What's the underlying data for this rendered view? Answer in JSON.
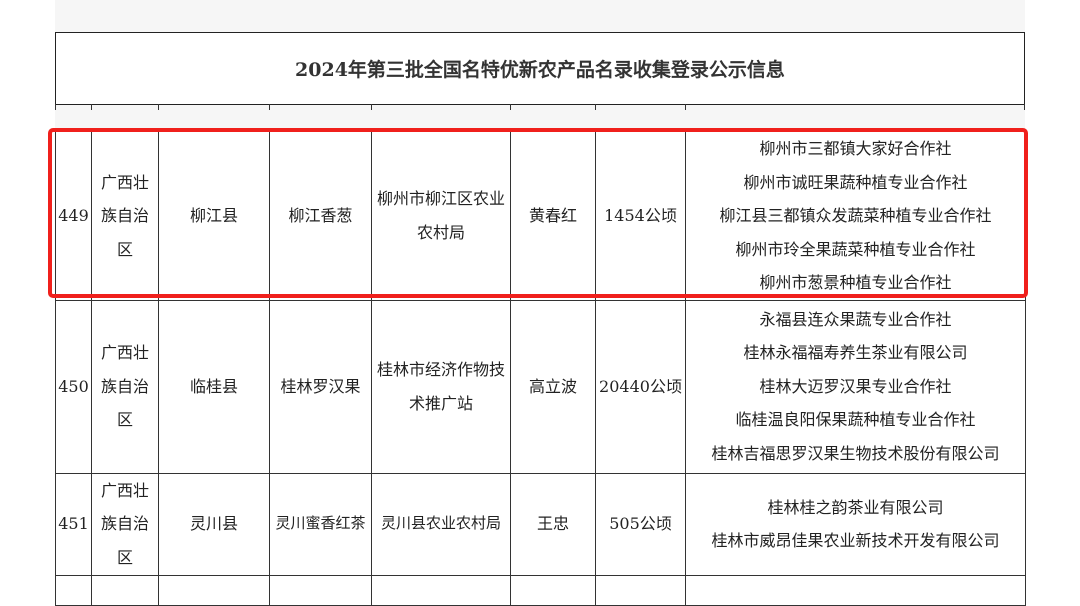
{
  "title": "2024年第三批全国名特优新农产品名录收集登录公示信息",
  "highlight_color": "#f0201c",
  "rows": [
    {
      "no": "449",
      "province": "广西壮族自治区",
      "county": "柳江县",
      "product": "柳江香葱",
      "applicant": "柳州市柳江区农业农村局",
      "contact": "黄春红",
      "scale": "1454公顷",
      "producers": [
        "柳州市三都镇大家好合作社",
        "柳州市诚旺果蔬种植专业合作社",
        "柳江县三都镇众发蔬菜种植专业合作社",
        "柳州市玲全果蔬菜种植专业合作社",
        "柳州市葱景种植专业合作社"
      ]
    },
    {
      "no": "450",
      "province": "广西壮族自治区",
      "county": "临桂县",
      "product": "桂林罗汉果",
      "applicant": "桂林市经济作物技术推广站",
      "contact": "高立波",
      "scale": "20440公顷",
      "producers": [
        "永福县连众果蔬专业合作社",
        "桂林永福福寿养生茶业有限公司",
        "桂林大迈罗汉果专业合作社",
        "临桂温良阳保果蔬种植专业合作社",
        "桂林吉福思罗汉果生物技术股份有限公司"
      ]
    },
    {
      "no": "451",
      "province": "广西壮族自治区",
      "county": "灵川县",
      "product": "灵川蜜香红茶",
      "applicant": "灵川县农业农村局",
      "contact": "王忠",
      "scale": "505公顷",
      "producers": [
        "桂林桂之韵茶业有限公司",
        "桂林市威昂佳果农业新技术开发有限公司"
      ]
    }
  ]
}
